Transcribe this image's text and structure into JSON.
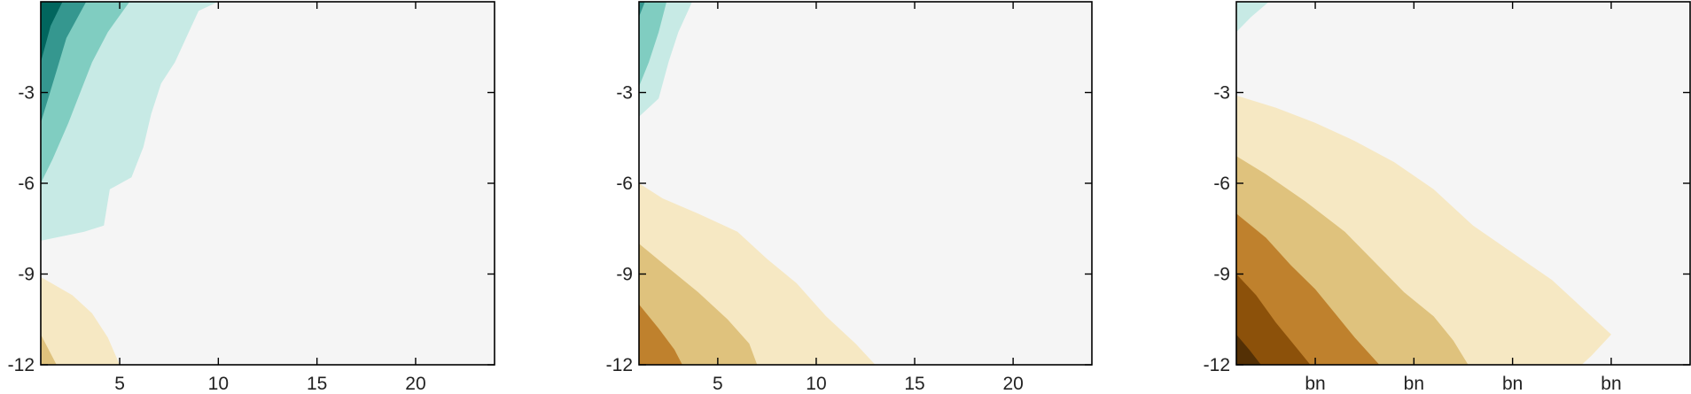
{
  "chart_data": [
    {
      "type": "heatmap",
      "title": "",
      "xlabel": "",
      "ylabel": "",
      "xlim": [
        1,
        24
      ],
      "ylim": [
        -12,
        0
      ],
      "x_ticks": [
        "5",
        "10",
        "15",
        "20"
      ],
      "y_ticks": [
        "-3",
        "-6",
        "-9",
        "-12"
      ],
      "colormap": [
        "#f5f5f5",
        "#c7eae5",
        "#80cdc1",
        "#35978f",
        "#01665e",
        "#f6e8c3",
        "#dfc27d",
        "#bf812d",
        "#8c510a",
        "#543005"
      ],
      "levels": [
        {
          "name": "teal-1",
          "color": "#c7eae5",
          "boundary": [
            [
              1,
              -7.9
            ],
            [
              3.2,
              -7.6
            ],
            [
              4.2,
              -7.4
            ],
            [
              4.5,
              -6.2
            ],
            [
              5.6,
              -5.8
            ],
            [
              6.2,
              -4.8
            ],
            [
              6.6,
              -3.7
            ],
            [
              7.1,
              -2.7
            ],
            [
              7.8,
              -2
            ],
            [
              8.5,
              -1
            ],
            [
              9,
              -0.3
            ],
            [
              10,
              0
            ],
            [
              1,
              0
            ]
          ]
        },
        {
          "name": "teal-2",
          "color": "#80cdc1",
          "boundary": [
            [
              1,
              -6
            ],
            [
              1.6,
              -5.2
            ],
            [
              2.4,
              -4
            ],
            [
              3,
              -3
            ],
            [
              3.6,
              -2
            ],
            [
              4.4,
              -1
            ],
            [
              5.5,
              0
            ],
            [
              1,
              0
            ]
          ]
        },
        {
          "name": "teal-3",
          "color": "#35978f",
          "boundary": [
            [
              1,
              -4
            ],
            [
              1.7,
              -2.5
            ],
            [
              2.3,
              -1.2
            ],
            [
              3.3,
              0
            ],
            [
              1,
              0
            ]
          ]
        },
        {
          "name": "teal-4",
          "color": "#01665e",
          "boundary": [
            [
              1,
              -2
            ],
            [
              1.5,
              -0.8
            ],
            [
              2.1,
              0
            ],
            [
              1,
              0
            ]
          ]
        },
        {
          "name": "brown-1",
          "color": "#f6e8c3",
          "boundary": [
            [
              1,
              -9.1
            ],
            [
              2.6,
              -9.7
            ],
            [
              3.6,
              -10.3
            ],
            [
              4.4,
              -11.1
            ],
            [
              5,
              -12
            ],
            [
              1,
              -12
            ]
          ]
        },
        {
          "name": "brown-2",
          "color": "#dfc27d",
          "boundary": [
            [
              1,
              -11
            ],
            [
              1.8,
              -12
            ],
            [
              1,
              -12
            ]
          ]
        }
      ]
    },
    {
      "type": "heatmap",
      "title": "",
      "xlabel": "",
      "ylabel": "",
      "xlim": [
        1,
        24
      ],
      "ylim": [
        -12,
        0
      ],
      "x_ticks": [
        "5",
        "10",
        "15",
        "20"
      ],
      "y_ticks": [
        "-3",
        "-6",
        "-9",
        "-12"
      ],
      "colormap": [
        "#f5f5f5",
        "#c7eae5",
        "#80cdc1",
        "#35978f",
        "#01665e",
        "#f6e8c3",
        "#dfc27d",
        "#bf812d",
        "#8c510a",
        "#543005"
      ],
      "levels": [
        {
          "name": "teal-1",
          "color": "#c7eae5",
          "boundary": [
            [
              1,
              -3.8
            ],
            [
              2,
              -3.2
            ],
            [
              2.5,
              -2
            ],
            [
              3,
              -1
            ],
            [
              3.7,
              0
            ],
            [
              1,
              0
            ]
          ]
        },
        {
          "name": "teal-2",
          "color": "#80cdc1",
          "boundary": [
            [
              1,
              -2.8
            ],
            [
              1.5,
              -2
            ],
            [
              2,
              -1
            ],
            [
              2.4,
              0
            ],
            [
              1,
              0
            ]
          ]
        },
        {
          "name": "teal-3",
          "color": "#35978f",
          "boundary": [
            [
              1,
              -0.5
            ],
            [
              1.3,
              0
            ],
            [
              1,
              0
            ]
          ]
        },
        {
          "name": "brown-1",
          "color": "#f6e8c3",
          "boundary": [
            [
              1,
              -6
            ],
            [
              2.2,
              -6.5
            ],
            [
              4,
              -7
            ],
            [
              6,
              -7.6
            ],
            [
              7.5,
              -8.5
            ],
            [
              9,
              -9.3
            ],
            [
              10.5,
              -10.4
            ],
            [
              12,
              -11.3
            ],
            [
              13,
              -12
            ],
            [
              1,
              -12
            ]
          ]
        },
        {
          "name": "brown-2",
          "color": "#dfc27d",
          "boundary": [
            [
              1,
              -8
            ],
            [
              2.5,
              -8.8
            ],
            [
              4,
              -9.6
            ],
            [
              5.5,
              -10.5
            ],
            [
              6.6,
              -11.3
            ],
            [
              7,
              -12
            ],
            [
              1,
              -12
            ]
          ]
        },
        {
          "name": "brown-3",
          "color": "#bf812d",
          "boundary": [
            [
              1,
              -10
            ],
            [
              2,
              -10.8
            ],
            [
              2.8,
              -11.5
            ],
            [
              3.2,
              -12
            ],
            [
              1,
              -12
            ]
          ]
        }
      ]
    },
    {
      "type": "heatmap",
      "title": "",
      "xlabel": "",
      "ylabel": "",
      "xlim": [
        0,
        46
      ],
      "ylim": [
        -12,
        0
      ],
      "x_tick_values": [
        8,
        18,
        28,
        38
      ],
      "x_ticks": [
        "bn",
        "bn",
        "bn",
        "bn"
      ],
      "y_ticks": [
        "-3",
        "-6",
        "-9",
        "-12"
      ],
      "colormap": [
        "#f5f5f5",
        "#c7eae5",
        "#80cdc1",
        "#35978f",
        "#01665e",
        "#f6e8c3",
        "#dfc27d",
        "#bf812d",
        "#8c510a",
        "#543005"
      ],
      "levels": [
        {
          "name": "teal-1",
          "color": "#c7eae5",
          "boundary": [
            [
              0,
              -1
            ],
            [
              1.5,
              -0.5
            ],
            [
              3.3,
              0
            ],
            [
              0,
              0
            ]
          ]
        },
        {
          "name": "brown-1",
          "color": "#f6e8c3",
          "boundary": [
            [
              0,
              -3.1
            ],
            [
              4,
              -3.5
            ],
            [
              8,
              -4
            ],
            [
              12,
              -4.6
            ],
            [
              16,
              -5.3
            ],
            [
              20,
              -6.2
            ],
            [
              24,
              -7.4
            ],
            [
              28,
              -8.3
            ],
            [
              32,
              -9.2
            ],
            [
              35,
              -10.1
            ],
            [
              38,
              -11
            ],
            [
              36,
              -11.7
            ],
            [
              35,
              -12
            ],
            [
              0,
              -12
            ]
          ]
        },
        {
          "name": "brown-2",
          "color": "#dfc27d",
          "boundary": [
            [
              0,
              -5.1
            ],
            [
              3,
              -5.7
            ],
            [
              7,
              -6.6
            ],
            [
              11,
              -7.6
            ],
            [
              14,
              -8.6
            ],
            [
              17,
              -9.6
            ],
            [
              20,
              -10.4
            ],
            [
              22,
              -11.2
            ],
            [
              23.5,
              -12
            ],
            [
              0,
              -12
            ]
          ]
        },
        {
          "name": "brown-3",
          "color": "#bf812d",
          "boundary": [
            [
              0,
              -7
            ],
            [
              3,
              -7.8
            ],
            [
              5.5,
              -8.7
            ],
            [
              8,
              -9.5
            ],
            [
              10,
              -10.3
            ],
            [
              12,
              -11.1
            ],
            [
              14.5,
              -12
            ],
            [
              0,
              -12
            ]
          ]
        },
        {
          "name": "brown-4",
          "color": "#8c510a",
          "boundary": [
            [
              0,
              -9
            ],
            [
              2,
              -9.7
            ],
            [
              4,
              -10.6
            ],
            [
              6,
              -11.4
            ],
            [
              7.5,
              -12
            ],
            [
              0,
              -12
            ]
          ]
        },
        {
          "name": "brown-5",
          "color": "#543005",
          "boundary": [
            [
              0,
              -11
            ],
            [
              1.3,
              -11.5
            ],
            [
              2.5,
              -12
            ],
            [
              0,
              -12
            ]
          ]
        }
      ]
    }
  ]
}
